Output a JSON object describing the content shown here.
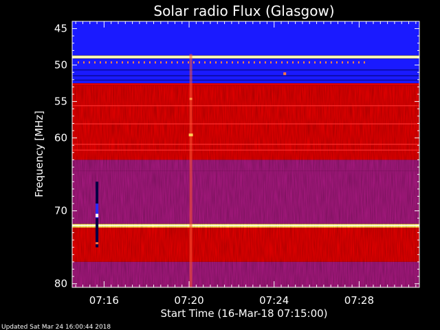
{
  "page": {
    "footer": "Updated Sat Mar 24 16:00:44 2018"
  },
  "chart_data": {
    "type": "heatmap",
    "title": "Solar radio Flux (Glasgow)",
    "xlabel": "Start Time (16-Mar-18 07:15:00)",
    "ylabel": "Frequency [MHz]",
    "x_range": [
      "07:14:30",
      "07:30:50"
    ],
    "y_range": [
      44,
      80.5
    ],
    "y_inverted": true,
    "x_ticks": [
      "07:16",
      "07:20",
      "07:24",
      "07:28"
    ],
    "y_ticks": [
      45,
      50,
      55,
      60,
      70,
      80
    ],
    "grid": false,
    "colormap": "blue-red-yellow-white (intensity)",
    "colors": {
      "low": "#1a1aff",
      "mid": "#dd0000",
      "high": "#ffee55",
      "max": "#ffffff"
    },
    "bands": [
      {
        "f0": 44.0,
        "f1": 48.7,
        "level": "low"
      },
      {
        "f0": 48.7,
        "f1": 49.1,
        "level": "high"
      },
      {
        "f0": 49.1,
        "f1": 52.5,
        "level": "low"
      },
      {
        "f0": 52.5,
        "f1": 52.8,
        "level": "mid"
      },
      {
        "f0": 52.8,
        "f1": 63.0,
        "level": "mid"
      },
      {
        "f0": 63.0,
        "f1": 64.5,
        "level": "mixed"
      },
      {
        "f0": 64.5,
        "f1": 71.8,
        "level": "mixed"
      },
      {
        "f0": 71.8,
        "f1": 72.3,
        "level": "high"
      },
      {
        "f0": 72.3,
        "f1": 77.0,
        "level": "mid"
      },
      {
        "f0": 77.0,
        "f1": 80.5,
        "level": "mixed"
      }
    ],
    "features": [
      {
        "kind": "vertical-streak",
        "time": "07:20:05",
        "f0": 48.5,
        "f1": 80.5
      },
      {
        "kind": "burst",
        "time": "07:15:40",
        "f0": 66.0,
        "f1": 75.0
      }
    ]
  }
}
